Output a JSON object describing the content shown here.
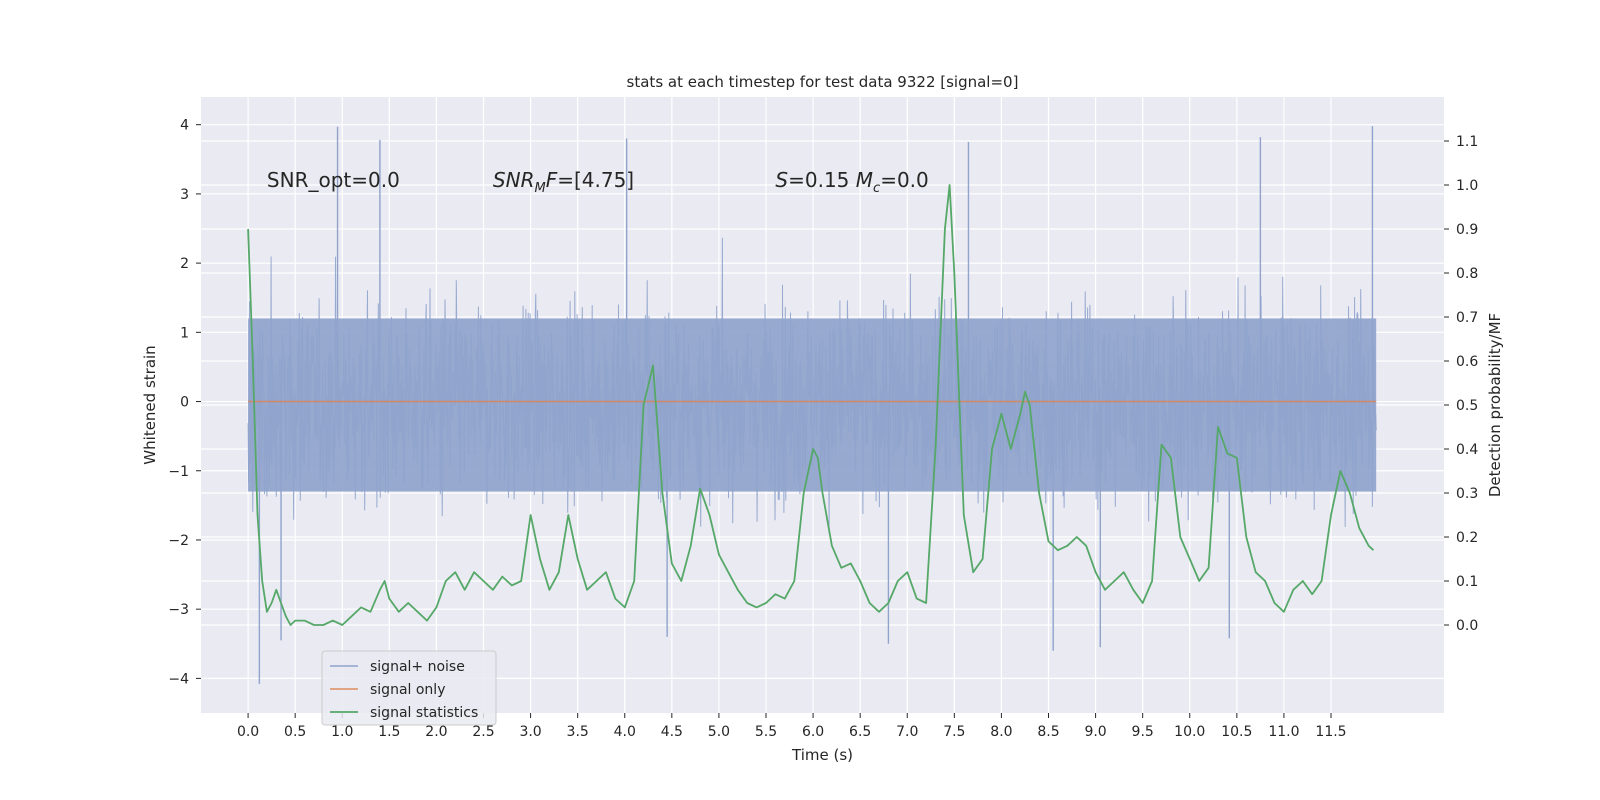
{
  "chart_data": {
    "type": "line",
    "title": "stats at each timestep for test data 9322 [signal=0]",
    "xlabel": "Time (s)",
    "ylabel": "Whitened strain",
    "y2label": "Detection probability/MF",
    "xlim": [
      -0.5,
      12.7
    ],
    "ylim": [
      -4.5,
      4.4
    ],
    "y2lim": [
      -0.2,
      1.2
    ],
    "x_ticks": [
      0.0,
      0.5,
      1.0,
      1.5,
      2.0,
      2.5,
      3.0,
      3.5,
      4.0,
      4.5,
      5.0,
      5.5,
      6.0,
      6.5,
      7.0,
      7.5,
      8.0,
      8.5,
      9.0,
      9.5,
      10.0,
      10.5,
      11.0,
      11.5
    ],
    "x_tick_labels": [
      "0.0",
      "0.5",
      "1.0",
      "1.5",
      "2.0",
      "2.5",
      "3.0",
      "3.5",
      "4.0",
      "4.5",
      "5.0",
      "5.5",
      "6.0",
      "6.5",
      "7.0",
      "7.5",
      "8.0",
      "8.5",
      "9.0",
      "9.5",
      "10.0",
      "10.5",
      "11.0",
      "11.5"
    ],
    "y_ticks": [
      -4,
      -3,
      -2,
      -1,
      0,
      1,
      2,
      3,
      4
    ],
    "y_tick_labels": [
      "−4",
      "−3",
      "−2",
      "−1",
      "0",
      "1",
      "2",
      "3",
      "4"
    ],
    "y2_ticks": [
      0.0,
      0.1,
      0.2,
      0.3,
      0.4,
      0.5,
      0.6,
      0.7,
      0.8,
      0.9,
      1.0,
      1.1
    ],
    "y2_tick_labels": [
      "0.0",
      "0.1",
      "0.2",
      "0.3",
      "0.4",
      "0.5",
      "0.6",
      "0.7",
      "0.8",
      "0.9",
      "1.0",
      "1.1"
    ],
    "grid": true,
    "legend_position": "lower-left",
    "annotations": [
      {
        "text": "SNR_opt=0.0",
        "x": 0.2,
        "y": 3.1
      },
      {
        "text": "SNR_MF=[4.75]",
        "x": 2.6,
        "y": 3.1
      },
      {
        "text": "S=0.15   M_c=0.0",
        "x": 5.6,
        "y": 3.1
      }
    ],
    "series": [
      {
        "name": "signal+ noise",
        "axis": "left",
        "color": "#8fa3cc",
        "kind": "noise",
        "x_range": [
          0.0,
          11.98
        ],
        "bulk_range": [
          -1.3,
          1.2
        ],
        "envelope_typical": [
          -2.6,
          2.6
        ],
        "peaks_high": [
          [
            0.95,
            3.97
          ],
          [
            1.4,
            3.78
          ],
          [
            4.02,
            3.8
          ],
          [
            7.65,
            3.75
          ],
          [
            10.75,
            3.82
          ],
          [
            11.94,
            3.98
          ]
        ],
        "peaks_low": [
          [
            0.12,
            -4.08
          ],
          [
            0.35,
            -3.45
          ],
          [
            4.45,
            -3.4
          ],
          [
            6.8,
            -3.5
          ],
          [
            8.55,
            -3.6
          ],
          [
            9.05,
            -3.55
          ],
          [
            10.42,
            -3.42
          ]
        ]
      },
      {
        "name": "signal only",
        "axis": "left",
        "color": "#dd8452",
        "x": [
          0.0,
          11.98
        ],
        "y": [
          0.0,
          0.0
        ]
      },
      {
        "name": "signal statistics",
        "axis": "right",
        "color": "#55a868",
        "x": [
          0.0,
          0.05,
          0.1,
          0.15,
          0.2,
          0.25,
          0.3,
          0.35,
          0.4,
          0.45,
          0.5,
          0.6,
          0.7,
          0.8,
          0.9,
          1.0,
          1.1,
          1.2,
          1.3,
          1.4,
          1.45,
          1.5,
          1.6,
          1.7,
          1.8,
          1.9,
          2.0,
          2.1,
          2.2,
          2.3,
          2.4,
          2.5,
          2.6,
          2.7,
          2.8,
          2.9,
          3.0,
          3.1,
          3.2,
          3.3,
          3.4,
          3.5,
          3.6,
          3.7,
          3.8,
          3.9,
          4.0,
          4.1,
          4.2,
          4.3,
          4.4,
          4.5,
          4.6,
          4.7,
          4.8,
          4.9,
          5.0,
          5.1,
          5.2,
          5.3,
          5.4,
          5.5,
          5.6,
          5.7,
          5.8,
          5.9,
          6.0,
          6.05,
          6.1,
          6.2,
          6.3,
          6.4,
          6.5,
          6.6,
          6.7,
          6.8,
          6.9,
          7.0,
          7.1,
          7.2,
          7.3,
          7.4,
          7.45,
          7.5,
          7.6,
          7.7,
          7.8,
          7.9,
          8.0,
          8.1,
          8.2,
          8.25,
          8.3,
          8.4,
          8.5,
          8.6,
          8.7,
          8.8,
          8.9,
          9.0,
          9.1,
          9.2,
          9.3,
          9.4,
          9.5,
          9.6,
          9.7,
          9.8,
          9.9,
          10.0,
          10.1,
          10.2,
          10.3,
          10.4,
          10.5,
          10.6,
          10.7,
          10.8,
          10.9,
          11.0,
          11.1,
          11.2,
          11.3,
          11.4,
          11.5,
          11.6,
          11.7,
          11.8,
          11.9,
          11.95
        ],
        "y": [
          0.9,
          0.6,
          0.25,
          0.1,
          0.03,
          0.05,
          0.08,
          0.05,
          0.02,
          0.0,
          0.01,
          0.01,
          0.0,
          0.0,
          0.01,
          0.0,
          0.02,
          0.04,
          0.03,
          0.08,
          0.1,
          0.06,
          0.03,
          0.05,
          0.03,
          0.01,
          0.04,
          0.1,
          0.12,
          0.08,
          0.12,
          0.1,
          0.08,
          0.11,
          0.09,
          0.1,
          0.25,
          0.15,
          0.08,
          0.12,
          0.25,
          0.15,
          0.08,
          0.1,
          0.12,
          0.06,
          0.04,
          0.1,
          0.5,
          0.59,
          0.3,
          0.14,
          0.1,
          0.18,
          0.31,
          0.25,
          0.16,
          0.12,
          0.08,
          0.05,
          0.04,
          0.05,
          0.07,
          0.06,
          0.1,
          0.3,
          0.4,
          0.38,
          0.3,
          0.18,
          0.13,
          0.14,
          0.1,
          0.05,
          0.03,
          0.05,
          0.1,
          0.12,
          0.06,
          0.05,
          0.4,
          0.9,
          1.0,
          0.8,
          0.25,
          0.12,
          0.15,
          0.4,
          0.48,
          0.4,
          0.48,
          0.53,
          0.5,
          0.3,
          0.19,
          0.17,
          0.18,
          0.2,
          0.18,
          0.12,
          0.08,
          0.1,
          0.12,
          0.08,
          0.05,
          0.1,
          0.41,
          0.38,
          0.2,
          0.15,
          0.1,
          0.13,
          0.45,
          0.39,
          0.38,
          0.2,
          0.12,
          0.1,
          0.05,
          0.03,
          0.08,
          0.1,
          0.07,
          0.1,
          0.25,
          0.35,
          0.3,
          0.22,
          0.18,
          0.17
        ]
      }
    ]
  }
}
